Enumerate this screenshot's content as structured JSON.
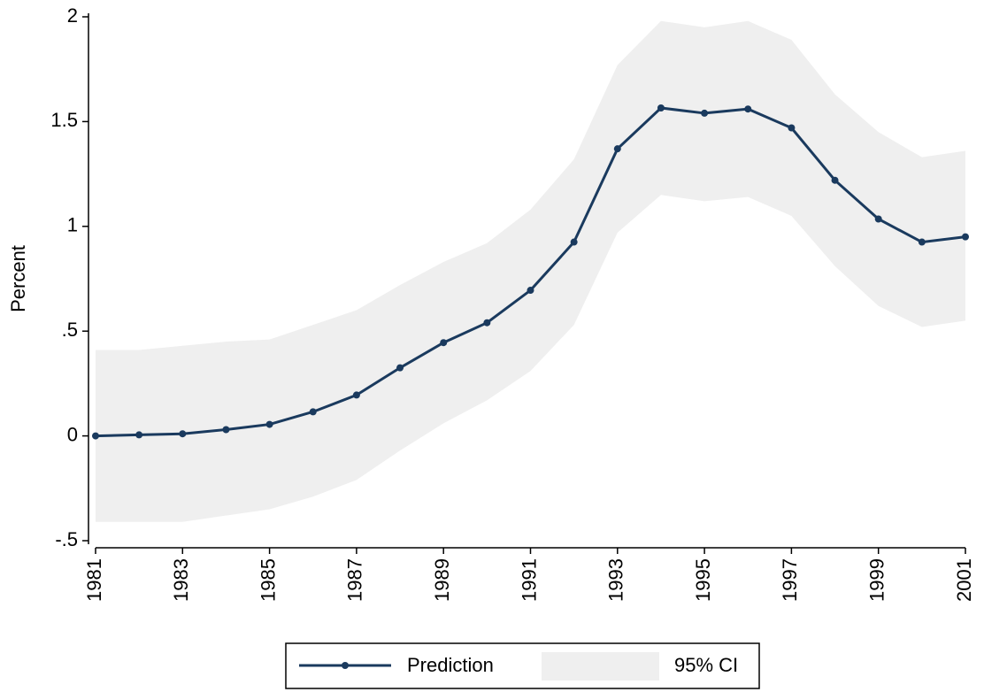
{
  "chart_data": {
    "type": "line",
    "y_label": "Percent",
    "x": [
      1981,
      1982,
      1983,
      1984,
      1985,
      1986,
      1987,
      1988,
      1989,
      1990,
      1991,
      1992,
      1993,
      1994,
      1995,
      1996,
      1997,
      1998,
      1999,
      2000,
      2001
    ],
    "series": [
      {
        "name": "Prediction",
        "color": "#1a3a5e",
        "values": [
          0,
          0.005,
          0.01,
          0.03,
          0.055,
          0.115,
          0.195,
          0.325,
          0.445,
          0.54,
          0.695,
          0.925,
          1.37,
          1.565,
          1.54,
          1.56,
          1.47,
          1.22,
          1.035,
          0.925,
          0.95
        ]
      }
    ],
    "band": {
      "name": "95% CI",
      "color": "#efefef",
      "lower": [
        -0.41,
        -0.41,
        -0.41,
        -0.38,
        -0.35,
        -0.29,
        -0.21,
        -0.07,
        0.06,
        0.17,
        0.31,
        0.53,
        0.97,
        1.15,
        1.12,
        1.14,
        1.05,
        0.81,
        0.62,
        0.52,
        0.55
      ],
      "upper": [
        0.41,
        0.41,
        0.43,
        0.45,
        0.46,
        0.53,
        0.6,
        0.72,
        0.83,
        0.92,
        1.08,
        1.32,
        1.77,
        1.98,
        1.95,
        1.98,
        1.89,
        1.63,
        1.45,
        1.33,
        1.36
      ]
    },
    "xlim": [
      1981,
      2001
    ],
    "xticks": [
      1981,
      1983,
      1985,
      1987,
      1989,
      1991,
      1993,
      1995,
      1997,
      1999,
      2001
    ],
    "ylim": [
      -0.5,
      2
    ],
    "yticks": [
      {
        "value": -0.5,
        "label": "-.5"
      },
      0,
      {
        "value": 0.5,
        "label": ".5"
      },
      1,
      1.5,
      2
    ],
    "grid": false,
    "legend": "bottom"
  }
}
